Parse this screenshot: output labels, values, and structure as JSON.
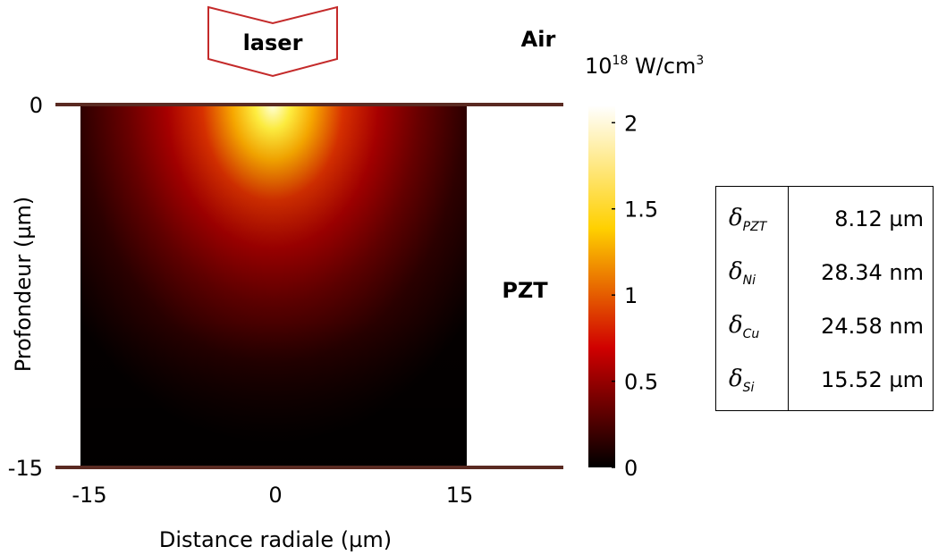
{
  "annotations": {
    "laser": "laser",
    "air": "Air",
    "pzt": "PZT"
  },
  "colorbar": {
    "unit_base": "10",
    "unit_exp": "18",
    "unit_rest": " W/cm",
    "unit_pow": "3",
    "ticks": [
      "0",
      "0.5",
      "1",
      "1.5",
      "2"
    ],
    "tick_values": [
      0,
      0.5,
      1,
      1.5,
      2
    ],
    "range": [
      0,
      2.1
    ],
    "colormap": "hot"
  },
  "chart_data": {
    "type": "heatmap",
    "title": "",
    "xlabel": "Distance radiale (µm)",
    "ylabel": "Profondeur (µm)",
    "xlim": [
      -15,
      15
    ],
    "ylim": [
      -15,
      0
    ],
    "x_ticks": [
      "-15",
      "0",
      "15"
    ],
    "y_ticks": [
      "0",
      "-15"
    ],
    "peak_value": 2.1,
    "peak_location": {
      "x": 0,
      "y": 0
    },
    "value_unit": "10^18 W/cm^3"
  },
  "table": {
    "rows": [
      {
        "symbol": "δ",
        "sub": "PZT",
        "value": "8.12 µm"
      },
      {
        "symbol": "δ",
        "sub": "Ni",
        "value": "28.34 nm"
      },
      {
        "symbol": "δ",
        "sub": "Cu",
        "value": "24.58 nm"
      },
      {
        "symbol": "δ",
        "sub": "Si",
        "value": "15.52 µm"
      }
    ]
  }
}
